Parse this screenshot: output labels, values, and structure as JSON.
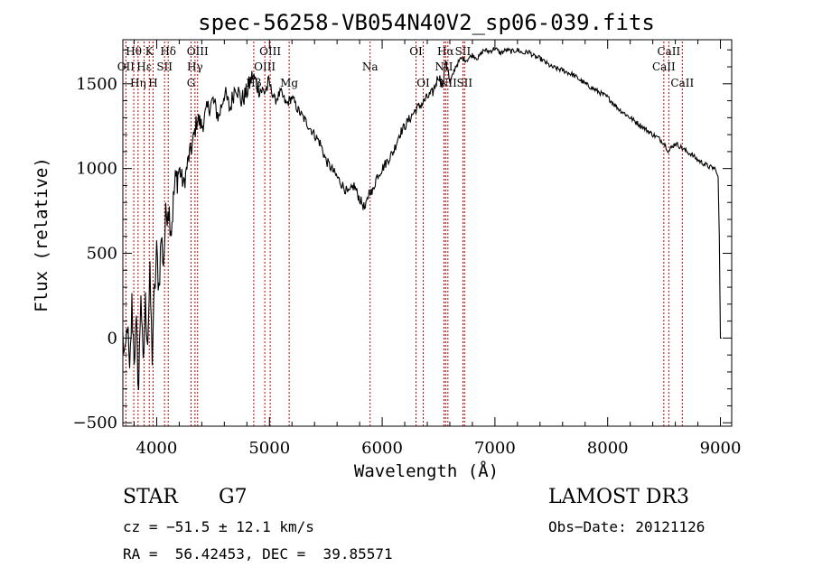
{
  "chart_data": {
    "type": "line",
    "title": "spec-56258-VB054N40V2_sp06-039.fits",
    "xlabel": "Wavelength (Å)",
    "ylabel": "Flux (relative)",
    "xlim": [
      3700,
      9100
    ],
    "ylim": [
      -520,
      1760
    ],
    "xticks": [
      4000,
      5000,
      6000,
      7000,
      8000,
      9000
    ],
    "yticks": [
      -500,
      0,
      500,
      1000,
      1500
    ],
    "series": [
      {
        "name": "flux",
        "x": [
          3700,
          3720,
          3740,
          3760,
          3780,
          3800,
          3820,
          3840,
          3860,
          3880,
          3900,
          3920,
          3940,
          3960,
          3980,
          4000,
          4020,
          4040,
          4060,
          4080,
          4100,
          4130,
          4160,
          4200,
          4240,
          4280,
          4320,
          4360,
          4400,
          4450,
          4500,
          4550,
          4600,
          4650,
          4700,
          4750,
          4800,
          4850,
          4900,
          4950,
          5000,
          5050,
          5100,
          5150,
          5200,
          5250,
          5300,
          5350,
          5400,
          5450,
          5500,
          5550,
          5600,
          5650,
          5700,
          5750,
          5800,
          5850,
          5890,
          5910,
          5950,
          6000,
          6050,
          6100,
          6150,
          6200,
          6250,
          6300,
          6350,
          6400,
          6450,
          6500,
          6540,
          6562,
          6580,
          6600,
          6650,
          6700,
          6750,
          6800,
          6850,
          6900,
          6950,
          7000,
          7050,
          7100,
          7150,
          7200,
          7250,
          7300,
          7350,
          7400,
          7500,
          7600,
          7700,
          7800,
          7900,
          8000,
          8100,
          8200,
          8300,
          8400,
          8450,
          8500,
          8542,
          8560,
          8600,
          8662,
          8700,
          8750,
          8800,
          8850,
          8900,
          8950,
          8980,
          8990,
          9000,
          9010
        ],
        "y": [
          0,
          -150,
          100,
          -250,
          200,
          -100,
          50,
          -300,
          300,
          -200,
          200,
          0,
          350,
          -100,
          250,
          500,
          300,
          600,
          450,
          700,
          800,
          650,
          900,
          1000,
          900,
          1050,
          1150,
          1300,
          1250,
          1350,
          1400,
          1300,
          1450,
          1350,
          1500,
          1400,
          1450,
          1550,
          1480,
          1450,
          1500,
          1400,
          1450,
          1380,
          1420,
          1350,
          1300,
          1250,
          1200,
          1150,
          1050,
          1000,
          950,
          900,
          850,
          900,
          820,
          760,
          880,
          850,
          950,
          1000,
          1050,
          1100,
          1200,
          1250,
          1300,
          1350,
          1380,
          1420,
          1450,
          1550,
          1480,
          1650,
          1600,
          1500,
          1600,
          1650,
          1640,
          1670,
          1650,
          1700,
          1690,
          1710,
          1680,
          1700,
          1690,
          1700,
          1680,
          1690,
          1660,
          1650,
          1600,
          1580,
          1550,
          1500,
          1460,
          1420,
          1350,
          1300,
          1250,
          1200,
          1180,
          1150,
          1100,
          1120,
          1150,
          1120,
          1100,
          1080,
          1050,
          1030,
          1010,
          1000,
          950,
          600,
          0,
          0
        ]
      }
    ],
    "lines": [
      {
        "label": "Hθ",
        "x": 3797,
        "row": 0
      },
      {
        "label": "OII",
        "x": 3727,
        "row": 1
      },
      {
        "label": "Hη",
        "x": 3835,
        "row": 2
      },
      {
        "label": "K",
        "x": 3934,
        "row": 0
      },
      {
        "label": "Hε",
        "x": 3889,
        "row": 1
      },
      {
        "label": "H",
        "x": 3968,
        "row": 2
      },
      {
        "label": "SII",
        "x": 4070,
        "row": 1
      },
      {
        "label": "Hδ",
        "x": 4102,
        "row": 0
      },
      {
        "label": "OIII",
        "x": 4363,
        "row": 0
      },
      {
        "label": "Hγ",
        "x": 4340,
        "row": 1
      },
      {
        "label": "G",
        "x": 4305,
        "row": 2
      },
      {
        "label": "OIII",
        "x": 5007,
        "row": 0
      },
      {
        "label": "OIII",
        "x": 4959,
        "row": 1
      },
      {
        "label": "Hβ",
        "x": 4861,
        "row": 2
      },
      {
        "label": "Mg",
        "x": 5175,
        "row": 2
      },
      {
        "label": "Na",
        "x": 5893,
        "row": 1
      },
      {
        "label": "OI",
        "x": 6300,
        "row": 0
      },
      {
        "label": "OI",
        "x": 6364,
        "row": 2
      },
      {
        "label": "Hα",
        "x": 6563,
        "row": 0
      },
      {
        "label": "NII",
        "x": 6548,
        "row": 1
      },
      {
        "label": "NII",
        "x": 6583,
        "row": 2
      },
      {
        "label": "SII",
        "x": 6716,
        "row": 0
      },
      {
        "label": "SII",
        "x": 6731,
        "row": 2
      },
      {
        "label": "CaII",
        "x": 8542,
        "row": 0
      },
      {
        "label": "CaII",
        "x": 8498,
        "row": 1
      },
      {
        "label": "CaII",
        "x": 8662,
        "row": 2
      }
    ]
  },
  "info": {
    "class": "STAR",
    "subclass": "G7",
    "survey": "LAMOST DR3",
    "cz": "cz = −51.5 ± 12.1 km/s",
    "obsdate": "Obs−Date: 20121126",
    "radec": "RA =  56.42453, DEC =  39.85571"
  }
}
